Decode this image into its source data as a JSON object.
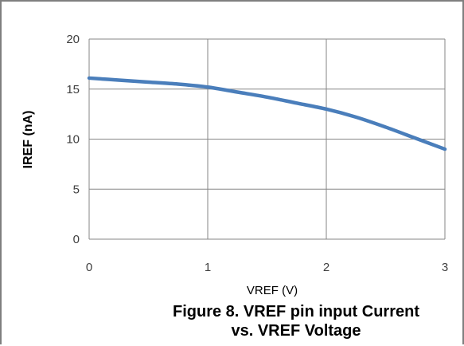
{
  "chart_data": {
    "type": "line",
    "title": "",
    "xlabel": "VREF (V)",
    "ylabel": "IREF (nA)",
    "xlim": [
      0,
      3
    ],
    "ylim": [
      0,
      20
    ],
    "x_ticks": [
      "0",
      "1",
      "2",
      "3"
    ],
    "y_ticks": [
      "0",
      "5",
      "10",
      "15",
      "20"
    ],
    "grid": true,
    "legend": "none",
    "series": [
      {
        "color": "#4a7ebb",
        "x": [
          0,
          0.25,
          0.5,
          0.75,
          1.0,
          1.25,
          1.5,
          1.75,
          2.0,
          2.25,
          2.5,
          2.75,
          3.0
        ],
        "y": [
          16.1,
          15.9,
          15.7,
          15.5,
          15.2,
          14.7,
          14.2,
          13.6,
          13.0,
          12.2,
          11.2,
          10.1,
          9.0
        ]
      }
    ]
  },
  "caption": {
    "line1": "Figure 8.  VREF pin input Current",
    "line2": "vs. VREF Voltage"
  }
}
